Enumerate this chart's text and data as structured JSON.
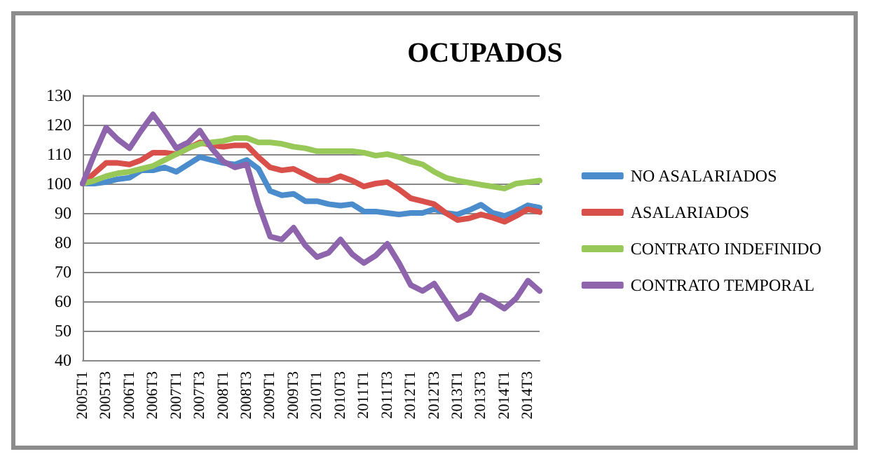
{
  "chart_data": {
    "type": "line",
    "title": "OCUPADOS",
    "categories": [
      "2005T1",
      null,
      "2005T3",
      null,
      "2006T1",
      null,
      "2006T3",
      null,
      "2007T1",
      null,
      "2007T3",
      null,
      "2008T1",
      null,
      "2008T3",
      null,
      "2009T1",
      null,
      "2009T3",
      null,
      "2010T1",
      null,
      "2010T3",
      null,
      "2011T1",
      null,
      "2011T3",
      null,
      "2012T1",
      null,
      "2012T3",
      null,
      "2013T1",
      null,
      "2013T3",
      null,
      "2014T1",
      null,
      "2014T3",
      null
    ],
    "series": [
      {
        "name": "NO ASALARIADOS",
        "color": "#4a8ccc",
        "values": [
          100,
          100,
          100.5,
          101.5,
          102,
          104.5,
          104.5,
          105.5,
          104,
          106.5,
          109,
          108,
          107,
          106.5,
          108,
          105,
          97.5,
          96,
          96.5,
          94,
          94,
          93,
          92.5,
          93,
          90.5,
          90.5,
          90,
          89.5,
          90,
          90,
          91.3,
          90,
          89.5,
          91,
          92.8,
          90,
          89,
          90.5,
          92.6,
          91.8
        ]
      },
      {
        "name": "ASALARIADOS",
        "color": "#d9504a",
        "values": [
          100,
          103.5,
          107,
          107,
          106.5,
          108,
          110.5,
          110.5,
          110,
          112,
          114,
          113,
          112.5,
          113,
          113,
          109,
          105.5,
          104.5,
          105,
          103,
          101,
          101,
          102.5,
          101,
          99,
          100,
          100.5,
          98,
          95,
          94,
          93,
          90,
          87.6,
          88.2,
          89.5,
          88.4,
          87,
          89,
          91.3,
          90.3
        ]
      },
      {
        "name": "CONTRATO INDEFINIDO",
        "color": "#98c858",
        "values": [
          100,
          101,
          102.5,
          103.5,
          104,
          105,
          106,
          108,
          110,
          112,
          113.5,
          114,
          114.5,
          115.5,
          115.5,
          114,
          114,
          113.5,
          112.5,
          112,
          111,
          111,
          111,
          111,
          110.5,
          109.5,
          110,
          109,
          107.5,
          106.5,
          104,
          102,
          101,
          100.3,
          99.6,
          99,
          98.3,
          100,
          100.5,
          101
        ]
      },
      {
        "name": "CONTRATO TEMPORAL",
        "color": "#8e64ac",
        "values": [
          100,
          110,
          119,
          115,
          112,
          118,
          123.5,
          118,
          112,
          114,
          118,
          112,
          107.5,
          105.5,
          106.5,
          93,
          82,
          81,
          85,
          79,
          75,
          76.5,
          81,
          76,
          73,
          75.5,
          79.5,
          73,
          65.5,
          63.5,
          66,
          60,
          54,
          56,
          62,
          60,
          57.5,
          61,
          67,
          63.5
        ]
      }
    ],
    "ylim": [
      40,
      130
    ],
    "yticks": [
      40,
      50,
      60,
      70,
      80,
      90,
      100,
      110,
      120,
      130
    ],
    "grid": "y",
    "legend": "right",
    "marker": "none",
    "line_style": "solid"
  }
}
